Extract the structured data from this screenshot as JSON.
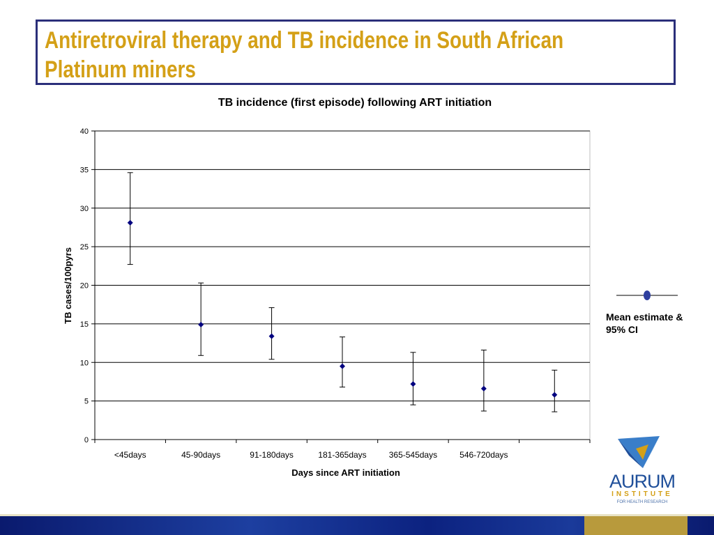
{
  "slide": {
    "title_line1": "Antiretroviral therapy and TB incidence in South African",
    "title_line2": "Platinum miners",
    "title_color": "#d4a017",
    "frame_color": "#2b2f7a"
  },
  "legend": {
    "label": "Mean estimate & 95% CI",
    "marker_color": "#2e3f9e"
  },
  "logo": {
    "name": "AURUM",
    "sub": "INSTITUTE",
    "tagline": "FOR HEALTH RESEARCH"
  },
  "chart_data": {
    "type": "scatter",
    "title": "TB incidence (first episode) following ART initiation",
    "xlabel": "Days since ART initiation",
    "ylabel": "TB cases/100pyrs",
    "ylim": [
      0,
      40
    ],
    "yticks": [
      0,
      5,
      10,
      15,
      20,
      25,
      30,
      35,
      40
    ],
    "grid": true,
    "categories": [
      "<45days",
      "45-90days",
      "91-180days",
      "181-365days",
      "365-545days",
      "546-720days",
      ""
    ],
    "series": [
      {
        "values": [
          28.1,
          14.9,
          13.4,
          9.5,
          7.2,
          6.6,
          5.8
        ],
        "ci_low": [
          22.7,
          10.9,
          10.4,
          6.8,
          4.5,
          3.7,
          3.6
        ],
        "ci_high": [
          34.6,
          20.3,
          17.1,
          13.3,
          11.3,
          11.6,
          9.0
        ]
      }
    ],
    "marker_color": "#00007f",
    "errorbar_color": "#000000"
  }
}
